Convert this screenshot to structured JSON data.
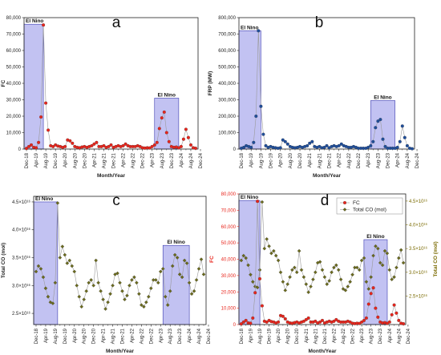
{
  "colors": {
    "fc_red": "#e8251c",
    "frp_blue": "#1f4e9b",
    "co_olive": "#6b6b1c",
    "elnino_fill": "#b7b7f0",
    "elnino_stroke": "#3a3ab0",
    "line_gray": "#9a9a9a",
    "co_axis_label": "#7a6a00"
  },
  "shared": {
    "x_tick_labels": [
      "Dec-18",
      "Apr-19",
      "Aug-19",
      "Dec-19",
      "Apr-20",
      "Aug-20",
      "Dec-20",
      "Apr-21",
      "Aug-21",
      "Dec-21",
      "Apr-22",
      "Aug-22",
      "Dec-22",
      "Apr-23",
      "Aug-23",
      "Dec-23",
      "Apr-24",
      "Aug-24",
      "Dec-24"
    ],
    "xlabel": "Month/Year",
    "elnino_label": "El Nino"
  },
  "chart_data": [
    {
      "panel": "a",
      "type": "line",
      "ylabel": "FC",
      "ylim": [
        0,
        80000
      ],
      "y_tick_labels": [
        "0",
        "10,000",
        "20,000",
        "30,000",
        "40,000",
        "50,000",
        "60,000",
        "70,000",
        "80,000"
      ],
      "y_ticks": [
        0,
        10000,
        20000,
        30000,
        40000,
        50000,
        60000,
        70000,
        80000
      ],
      "elnino_periods": [
        {
          "start": 0,
          "end": 6,
          "top": 76000
        },
        {
          "start": 54,
          "end": 62,
          "top": 31000
        }
      ],
      "series": [
        {
          "values": [
            400,
            1500,
            2500,
            1000,
            800,
            4000,
            19500,
            75500,
            28000,
            11500,
            2000,
            1500,
            2500,
            1800,
            1500,
            1000,
            1500,
            5500,
            5000,
            3500,
            1500,
            1000,
            800,
            1200,
            1500,
            1000,
            1500,
            2000,
            3000,
            4000,
            1500,
            1500,
            2000,
            1000,
            1500,
            2500,
            1000,
            1500,
            2000,
            1500,
            2000,
            3000,
            2000,
            1500,
            1500,
            1500,
            2000,
            1500,
            800,
            600,
            800,
            700,
            1500,
            2500,
            4000,
            12500,
            19000,
            22500,
            10000,
            4500,
            1500,
            1000,
            1200,
            800,
            1500,
            6000,
            12000,
            7000,
            2500,
            800,
            500
          ]
        }
      ]
    },
    {
      "panel": "b",
      "type": "line",
      "ylabel": "FRP (MW)",
      "ylim": [
        0,
        800000
      ],
      "y_tick_labels": [
        "0",
        "100,000",
        "200,000",
        "300,000",
        "400,000",
        "500,000",
        "600,000",
        "700,000",
        "800,000"
      ],
      "y_ticks": [
        0,
        100000,
        200000,
        300000,
        400000,
        500000,
        600000,
        700000,
        800000
      ],
      "elnino_periods": [
        {
          "start": 0,
          "end": 7,
          "top": 720000
        },
        {
          "start": 54,
          "end": 62,
          "top": 295000
        }
      ],
      "series": [
        {
          "values": [
            5000,
            10000,
            20000,
            15000,
            10000,
            40000,
            200000,
            720000,
            260000,
            90000,
            20000,
            10000,
            15000,
            10000,
            8000,
            5000,
            8000,
            55000,
            45000,
            30000,
            15000,
            10000,
            8000,
            10000,
            15000,
            10000,
            15000,
            20000,
            35000,
            45000,
            15000,
            10000,
            15000,
            8000,
            10000,
            20000,
            8000,
            15000,
            20000,
            15000,
            20000,
            30000,
            20000,
            15000,
            10000,
            10000,
            15000,
            10000,
            5000,
            5000,
            5000,
            5000,
            10000,
            20000,
            45000,
            130000,
            170000,
            180000,
            60000,
            15000,
            5000,
            5000,
            5000,
            5000,
            10000,
            45000,
            140000,
            70000,
            20000,
            5000,
            2000
          ]
        }
      ]
    },
    {
      "panel": "c",
      "type": "line",
      "ylabel": "Total CO (mol)",
      "ylim": [
        2.3e+16,
        4.6e+16
      ],
      "y_tick_labels": [
        "2.5×10¹⁶",
        "3.0×10¹⁶",
        "3.5×10¹⁶",
        "4.0×10¹⁶",
        "4.5×10¹⁶"
      ],
      "y_ticks": [
        2.5e+16,
        3e+16,
        3.5e+16,
        4e+16,
        4.5e+16
      ],
      "elnino_periods": [
        {
          "start": 0,
          "end": 8,
          "top": 4.5e+16
        },
        {
          "start": 54,
          "end": 63,
          "top": 3.72e+16
        }
      ],
      "series": [
        {
          "values": [
            3.25e+16,
            3.35e+16,
            3.3e+16,
            3.15e+16,
            2.95e+16,
            2.8e+16,
            2.7e+16,
            2.68e+16,
            3.05e+16,
            4.48e+16,
            3.5e+16,
            3.7e+16,
            3.55e+16,
            3.4e+16,
            3.45e+16,
            3.35e+16,
            3.25e+16,
            3e+16,
            2.8e+16,
            2.62e+16,
            2.75e+16,
            2.9e+16,
            3.05e+16,
            3.1e+16,
            3e+16,
            3.45e+16,
            3.05e+16,
            2.9e+16,
            2.75e+16,
            2.58e+16,
            2.7e+16,
            2.85e+16,
            3e+16,
            3.2e+16,
            3.22e+16,
            3.05e+16,
            2.9e+16,
            2.75e+16,
            2.82e+16,
            3e+16,
            3.1e+16,
            3.15e+16,
            3.05e+16,
            2.85e+16,
            2.65e+16,
            2.62e+16,
            2.7e+16,
            2.8e+16,
            2.95e+16,
            3.1e+16,
            3.1e+16,
            3.05e+16,
            3.25e+16,
            3.3e+16,
            2.8e+16,
            2.65e+16,
            2.9e+16,
            3.35e+16,
            3.55e+16,
            3.5e+16,
            3.2e+16,
            3.15e+16,
            3.45e+16,
            3.4e+16,
            3.05e+16,
            2.85e+16,
            2.9e+16,
            3.1e+16,
            3.3e+16,
            3.47e+16,
            3.2e+16
          ]
        }
      ]
    },
    {
      "panel": "d",
      "type": "line",
      "ylabel_left": "FC",
      "ylabel_right": "Total CO (mol)",
      "ylim_left": [
        0,
        80000
      ],
      "y_tick_labels_left": [
        "0",
        "10,000",
        "20,000",
        "30,000",
        "40,000",
        "50,000",
        "60,000",
        "70,000",
        "80,000"
      ],
      "y_ticks_left": [
        0,
        10000,
        20000,
        30000,
        40000,
        50000,
        60000,
        70000,
        80000
      ],
      "ylim_right": [
        1.9e+16,
        4.65e+16
      ],
      "y_tick_labels_right": [
        "2.5×10¹⁶",
        "3.0×10¹⁶",
        "3.5×10¹⁶",
        "4.0×10¹⁶",
        "4.5×10¹⁶"
      ],
      "y_ticks_right": [
        2.5e+16,
        3e+16,
        3.5e+16,
        4e+16,
        4.5e+16
      ],
      "legend_position": "top-right",
      "elnino_periods": [
        {
          "start": 0,
          "end": 7,
          "top": 76000
        },
        {
          "start": 54,
          "end": 62,
          "top": 52000
        }
      ],
      "series": [
        {
          "name": "FC",
          "axis": "left",
          "values": [
            400,
            1500,
            2500,
            1000,
            800,
            4000,
            19500,
            75500,
            28000,
            11500,
            2000,
            1500,
            2500,
            1800,
            1500,
            1000,
            1500,
            5500,
            5000,
            3500,
            1500,
            1000,
            800,
            1200,
            1500,
            1000,
            1500,
            2000,
            3000,
            4000,
            1500,
            1500,
            2000,
            1000,
            1500,
            2500,
            1000,
            1500,
            2000,
            1500,
            2000,
            3000,
            2000,
            1500,
            1500,
            1500,
            2000,
            1500,
            800,
            600,
            800,
            700,
            1500,
            2500,
            4000,
            12500,
            19000,
            22500,
            10000,
            4500,
            1500,
            1000,
            1200,
            800,
            1500,
            6000,
            12000,
            7000,
            2500,
            800,
            500
          ]
        },
        {
          "name": "Total CO (mol)",
          "axis": "right",
          "values": [
            3.25e+16,
            3.35e+16,
            3.3e+16,
            3.15e+16,
            2.95e+16,
            2.8e+16,
            2.7e+16,
            2.68e+16,
            3.05e+16,
            4.48e+16,
            3.5e+16,
            3.7e+16,
            3.55e+16,
            3.4e+16,
            3.45e+16,
            3.35e+16,
            3.25e+16,
            3e+16,
            2.8e+16,
            2.62e+16,
            2.75e+16,
            2.9e+16,
            3.05e+16,
            3.1e+16,
            3e+16,
            3.45e+16,
            3.05e+16,
            2.9e+16,
            2.75e+16,
            2.58e+16,
            2.7e+16,
            2.85e+16,
            3e+16,
            3.2e+16,
            3.22e+16,
            3.05e+16,
            2.9e+16,
            2.75e+16,
            2.82e+16,
            3e+16,
            3.1e+16,
            3.15e+16,
            3.05e+16,
            2.85e+16,
            2.65e+16,
            2.62e+16,
            2.7e+16,
            2.8e+16,
            2.95e+16,
            3.1e+16,
            3.1e+16,
            3.05e+16,
            3.25e+16,
            3.3e+16,
            2.8e+16,
            2.65e+16,
            2.9e+16,
            3.35e+16,
            3.55e+16,
            3.5e+16,
            3.2e+16,
            3.15e+16,
            3.45e+16,
            3.4e+16,
            3.05e+16,
            2.85e+16,
            2.9e+16,
            3.1e+16,
            3.3e+16,
            3.47e+16,
            3.2e+16
          ]
        }
      ]
    }
  ]
}
